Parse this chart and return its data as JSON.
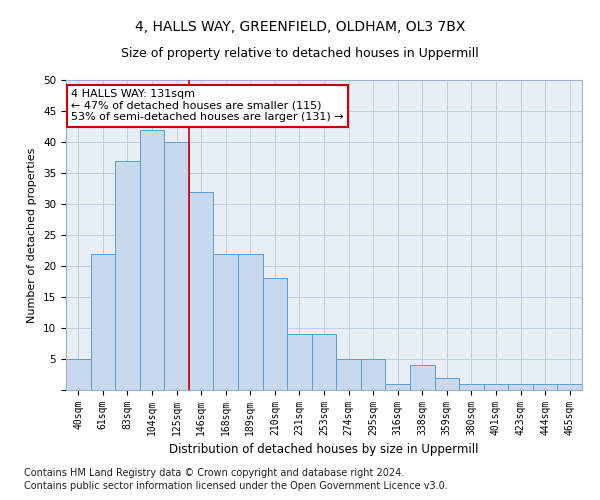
{
  "title1": "4, HALLS WAY, GREENFIELD, OLDHAM, OL3 7BX",
  "title2": "Size of property relative to detached houses in Uppermill",
  "xlabel": "Distribution of detached houses by size in Uppermill",
  "ylabel": "Number of detached properties",
  "categories": [
    "40sqm",
    "61sqm",
    "83sqm",
    "104sqm",
    "125sqm",
    "146sqm",
    "168sqm",
    "189sqm",
    "210sqm",
    "231sqm",
    "253sqm",
    "274sqm",
    "295sqm",
    "316sqm",
    "338sqm",
    "359sqm",
    "380sqm",
    "401sqm",
    "423sqm",
    "444sqm",
    "465sqm"
  ],
  "values": [
    5,
    22,
    37,
    42,
    40,
    32,
    22,
    22,
    18,
    9,
    9,
    5,
    5,
    1,
    4,
    2,
    1,
    1,
    1,
    1,
    1
  ],
  "bar_color": "#c8d9ed",
  "bar_edge_color": "#5a9fd4",
  "highlight_line_index": 4.5,
  "annotation_text": "4 HALLS WAY: 131sqm\n← 47% of detached houses are smaller (115)\n53% of semi-detached houses are larger (131) →",
  "annotation_box_color": "#ffffff",
  "annotation_box_edge": "#cc0000",
  "footer1": "Contains HM Land Registry data © Crown copyright and database right 2024.",
  "footer2": "Contains public sector information licensed under the Open Government Licence v3.0.",
  "ylim": [
    0,
    50
  ],
  "title1_fontsize": 10,
  "title2_fontsize": 9,
  "xlabel_fontsize": 8.5,
  "ylabel_fontsize": 8,
  "tick_fontsize": 7,
  "annotation_fontsize": 8,
  "footer_fontsize": 7
}
